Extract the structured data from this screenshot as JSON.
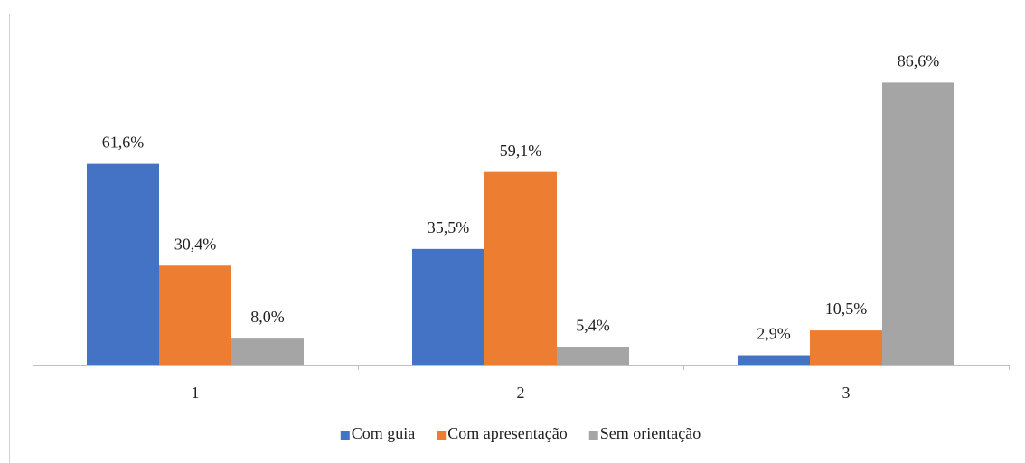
{
  "chart_data": {
    "type": "bar",
    "categories": [
      "1",
      "2",
      "3"
    ],
    "series": [
      {
        "name": "Com guia",
        "color": "#4472c4",
        "values": [
          61.6,
          35.5,
          2.9
        ],
        "value_labels": [
          "61,6%",
          "35,5%",
          "2,9%"
        ]
      },
      {
        "name": "Com apresentação",
        "color": "#ed7d31",
        "values": [
          30.4,
          59.1,
          10.5
        ],
        "value_labels": [
          "30,4%",
          "59,1%",
          "10,5%"
        ]
      },
      {
        "name": "Sem orientação",
        "color": "#a5a5a5",
        "values": [
          8.0,
          5.4,
          86.6
        ],
        "value_labels": [
          "8,0%",
          "5,4%",
          "86,6%"
        ]
      }
    ],
    "ylim": [
      0,
      100
    ],
    "legend": "bottom"
  }
}
